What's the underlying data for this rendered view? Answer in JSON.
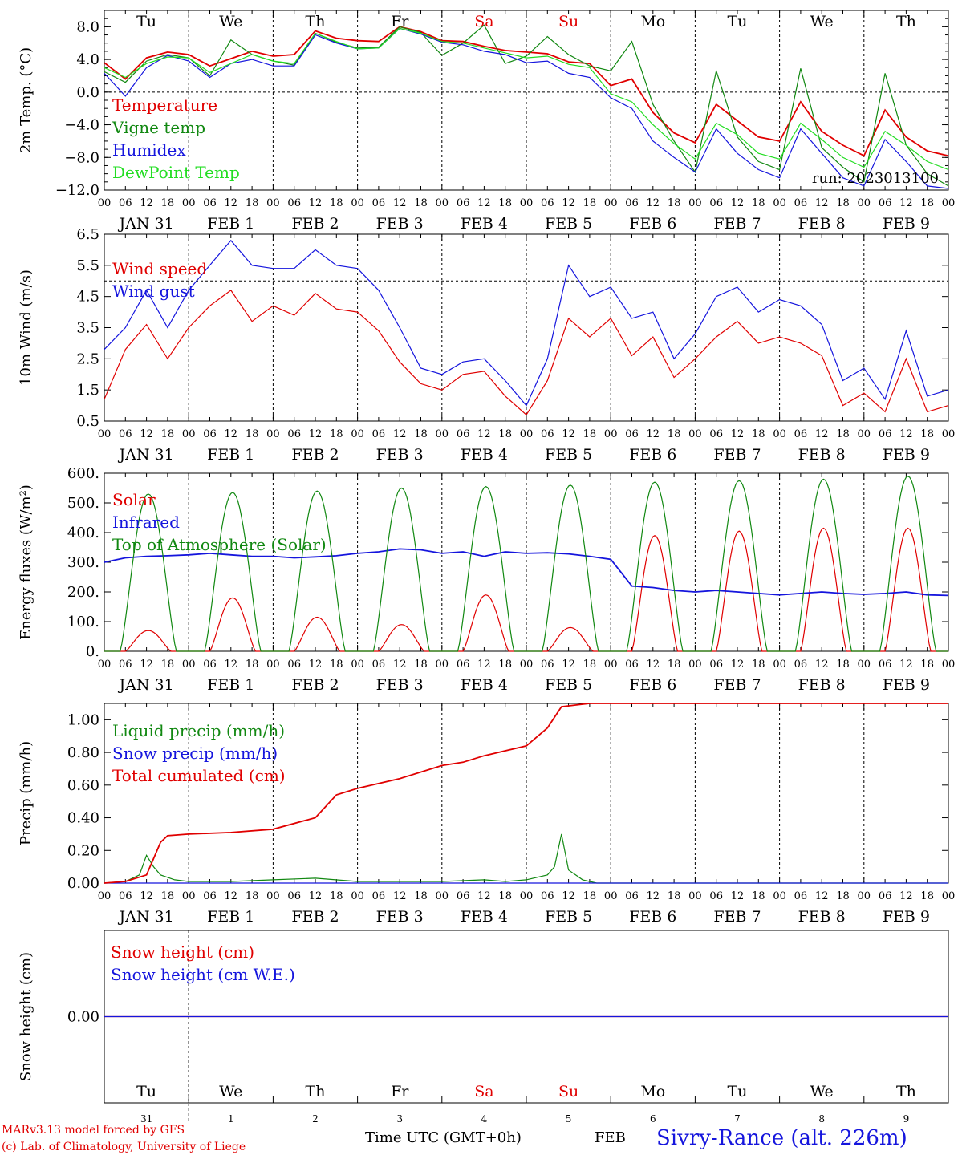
{
  "chart_data": [
    {
      "type": "line",
      "ylabel": "2m Temp. (°C)",
      "ylim": [
        -12,
        10
      ],
      "yticks": [
        "8.0",
        "4.0",
        "0.0",
        "−4.0",
        "−8.0",
        "−12.0"
      ],
      "ytick_values": [
        8,
        4,
        0,
        -4,
        -8,
        -12
      ],
      "zero_line": 0,
      "run_label": "run: 2023013100",
      "series": [
        {
          "name": "Temperature",
          "color": "#e00000",
          "x": [
            0,
            6,
            12,
            18,
            24,
            30,
            36,
            42,
            48,
            54,
            60,
            66,
            72,
            78,
            84,
            90,
            96,
            102,
            108,
            114,
            120,
            126,
            132,
            138,
            144,
            150,
            156,
            162,
            168,
            174,
            180,
            186,
            192,
            198,
            204,
            210,
            216,
            222,
            228,
            234,
            240
          ],
          "values": [
            3.6,
            1.6,
            4.2,
            4.9,
            4.6,
            3.2,
            4.1,
            5.0,
            4.4,
            4.6,
            7.5,
            6.6,
            6.3,
            6.2,
            8.0,
            7.4,
            6.3,
            6.2,
            5.6,
            5.1,
            4.9,
            4.7,
            3.7,
            3.5,
            0.8,
            1.6,
            -2.5,
            -5.0,
            -6.2,
            -1.5,
            -3.5,
            -5.5,
            -6.0,
            -1.2,
            -4.8,
            -6.5,
            -7.8,
            -2.2,
            -5.5,
            -7.2,
            -7.8
          ]
        },
        {
          "name": "Vigne temp",
          "color": "#118811",
          "x": [
            0,
            6,
            12,
            18,
            24,
            30,
            36,
            42,
            48,
            54,
            60,
            66,
            72,
            78,
            84,
            90,
            96,
            102,
            108,
            114,
            120,
            126,
            132,
            138,
            144,
            150,
            156,
            162,
            168,
            174,
            180,
            186,
            192,
            198,
            204,
            210,
            216,
            222,
            228,
            234,
            240
          ],
          "values": [
            2.5,
            1.2,
            3.8,
            4.6,
            4.2,
            2.0,
            6.4,
            4.6,
            3.8,
            3.3,
            7.2,
            6.1,
            5.4,
            5.5,
            8.0,
            7.3,
            4.5,
            6.0,
            8.2,
            3.5,
            4.4,
            6.8,
            4.6,
            3.2,
            2.6,
            6.2,
            -1.5,
            -6.0,
            -9.8,
            2.6,
            -5.5,
            -8.5,
            -9.5,
            2.9,
            -6.8,
            -9.2,
            -11.0,
            2.3,
            -6.5,
            -10.0,
            -11.5
          ]
        },
        {
          "name": "Humidex",
          "color": "#1515dd",
          "x": [
            0,
            6,
            12,
            18,
            24,
            30,
            36,
            42,
            48,
            54,
            60,
            66,
            72,
            78,
            84,
            90,
            96,
            102,
            108,
            114,
            120,
            126,
            132,
            138,
            144,
            150,
            156,
            162,
            168,
            174,
            180,
            186,
            192,
            198,
            204,
            210,
            216,
            222,
            228,
            234,
            240
          ],
          "values": [
            2.3,
            -0.5,
            3.0,
            4.5,
            3.8,
            1.8,
            3.5,
            4.0,
            3.2,
            3.2,
            7.0,
            6.0,
            5.3,
            5.4,
            7.8,
            7.1,
            6.1,
            5.8,
            5.0,
            4.6,
            3.6,
            3.8,
            2.3,
            1.8,
            -0.7,
            -2.0,
            -6.0,
            -8.0,
            -9.8,
            -4.5,
            -7.5,
            -9.5,
            -10.5,
            -4.5,
            -7.5,
            -10.5,
            -11.5,
            -5.8,
            -8.5,
            -11.5,
            -11.8
          ]
        },
        {
          "name": "DewPoint Temp",
          "color": "#22dd22",
          "x": [
            0,
            6,
            12,
            18,
            24,
            30,
            36,
            42,
            48,
            54,
            60,
            66,
            72,
            78,
            84,
            90,
            96,
            102,
            108,
            114,
            120,
            126,
            132,
            138,
            144,
            150,
            156,
            162,
            168,
            174,
            180,
            186,
            192,
            198,
            204,
            210,
            216,
            222,
            228,
            234,
            240
          ],
          "values": [
            3.0,
            1.8,
            3.5,
            4.3,
            4.2,
            2.4,
            3.5,
            4.6,
            3.8,
            3.5,
            7.2,
            6.2,
            5.3,
            5.4,
            7.8,
            7.2,
            6.2,
            6.0,
            5.4,
            4.8,
            4.2,
            4.4,
            3.4,
            3.0,
            -0.2,
            -1.2,
            -4.0,
            -6.3,
            -8.2,
            -3.8,
            -5.2,
            -7.5,
            -8.2,
            -3.8,
            -5.8,
            -8.0,
            -9.2,
            -4.8,
            -6.5,
            -8.5,
            -9.5
          ]
        }
      ]
    },
    {
      "type": "line",
      "ylabel": "10m Wind (m/s)",
      "ylim": [
        0.5,
        6.5
      ],
      "yticks": [
        "6.5",
        "5.5",
        "4.5",
        "3.5",
        "2.5",
        "1.5",
        "0.5"
      ],
      "ytick_values": [
        6.5,
        5.5,
        4.5,
        3.5,
        2.5,
        1.5,
        0.5
      ],
      "dashed_line": 5.0,
      "series": [
        {
          "name": "Wind speed",
          "color": "#e00000",
          "x": [
            0,
            6,
            12,
            18,
            24,
            30,
            36,
            42,
            48,
            54,
            60,
            66,
            72,
            78,
            84,
            90,
            96,
            102,
            108,
            114,
            120,
            126,
            132,
            138,
            144,
            150,
            156,
            162,
            168,
            174,
            180,
            186,
            192,
            198,
            204,
            210,
            216,
            222,
            228,
            234,
            240
          ],
          "values": [
            1.2,
            2.8,
            3.6,
            2.5,
            3.5,
            4.2,
            4.7,
            3.7,
            4.2,
            3.9,
            4.6,
            4.1,
            4.0,
            3.4,
            2.4,
            1.7,
            1.5,
            2.0,
            2.1,
            1.3,
            0.7,
            1.8,
            3.8,
            3.2,
            3.8,
            2.6,
            3.2,
            1.9,
            2.5,
            3.2,
            3.7,
            3.0,
            3.2,
            3.0,
            2.6,
            1.0,
            1.4,
            0.8,
            2.5,
            0.8,
            1.0
          ]
        },
        {
          "name": "Wind gust",
          "color": "#1515dd",
          "x": [
            0,
            6,
            12,
            18,
            24,
            30,
            36,
            42,
            48,
            54,
            60,
            66,
            72,
            78,
            84,
            90,
            96,
            102,
            108,
            114,
            120,
            126,
            132,
            138,
            144,
            150,
            156,
            162,
            168,
            174,
            180,
            186,
            192,
            198,
            204,
            210,
            216,
            222,
            228,
            234,
            240
          ],
          "values": [
            2.8,
            3.5,
            4.7,
            3.5,
            4.7,
            5.5,
            6.3,
            5.5,
            5.4,
            5.4,
            6.0,
            5.5,
            5.4,
            4.7,
            3.5,
            2.2,
            2.0,
            2.4,
            2.5,
            1.8,
            1.0,
            2.5,
            5.5,
            4.5,
            4.8,
            3.8,
            4.0,
            2.5,
            3.3,
            4.5,
            4.8,
            4.0,
            4.4,
            4.2,
            3.6,
            1.8,
            2.2,
            1.2,
            3.4,
            1.3,
            1.5
          ]
        }
      ]
    },
    {
      "type": "line",
      "ylabel": "Energy fluxes (W/m²)",
      "ylim": [
        0,
        600
      ],
      "yticks": [
        "600.",
        "500.",
        "400.",
        "300.",
        "200.",
        "100.",
        "0."
      ],
      "ytick_values": [
        600,
        500,
        400,
        300,
        200,
        100,
        0
      ],
      "series": [
        {
          "name": "Solar",
          "color": "#e00000",
          "peaks": [
            70,
            180,
            115,
            90,
            190,
            80,
            390,
            405,
            415,
            415
          ]
        },
        {
          "name": "Infrared",
          "color": "#1515dd",
          "x": [
            0,
            6,
            12,
            18,
            24,
            30,
            36,
            42,
            48,
            54,
            60,
            66,
            72,
            78,
            84,
            90,
            96,
            102,
            108,
            114,
            120,
            126,
            132,
            138,
            144,
            150,
            156,
            162,
            168,
            174,
            180,
            186,
            192,
            198,
            204,
            210,
            216,
            222,
            228,
            234,
            240
          ],
          "values": [
            300,
            315,
            320,
            322,
            325,
            330,
            325,
            320,
            320,
            315,
            318,
            322,
            330,
            335,
            345,
            342,
            330,
            335,
            320,
            335,
            330,
            332,
            328,
            320,
            310,
            220,
            215,
            205,
            200,
            205,
            200,
            195,
            190,
            195,
            200,
            195,
            192,
            195,
            200,
            190,
            188
          ]
        },
        {
          "name": "Top of Atmosphere (Solar)",
          "color": "#118811",
          "peaks": [
            530,
            535,
            540,
            550,
            555,
            560,
            570,
            575,
            580,
            590
          ]
        }
      ]
    },
    {
      "type": "line",
      "ylabel": "Precip (mm/h)",
      "ylim": [
        0,
        1.1
      ],
      "yticks": [
        "1.00",
        "0.80",
        "0.60",
        "0.40",
        "0.20",
        "0.00"
      ],
      "ytick_values": [
        1.0,
        0.8,
        0.6,
        0.4,
        0.2,
        0.0
      ],
      "series": [
        {
          "name": "Liquid precip (mm/h)",
          "color": "#118811",
          "x": [
            0,
            6,
            10,
            12,
            14,
            16,
            20,
            24,
            36,
            48,
            60,
            72,
            84,
            96,
            108,
            114,
            120,
            126,
            128,
            130,
            132,
            134,
            136,
            138,
            140,
            144,
            240
          ],
          "values": [
            0,
            0.01,
            0.05,
            0.17,
            0.1,
            0.05,
            0.02,
            0.01,
            0.01,
            0.02,
            0.03,
            0.01,
            0.01,
            0.01,
            0.02,
            0.01,
            0.02,
            0.05,
            0.1,
            0.3,
            0.08,
            0.05,
            0.02,
            0.01,
            0.0,
            0.0,
            0.0
          ]
        },
        {
          "name": "Snow precip (mm/h)",
          "color": "#1515dd",
          "x": [
            0,
            240
          ],
          "values": [
            0,
            0
          ]
        },
        {
          "name": "Total cumulated (cm)",
          "color": "#e00000",
          "x": [
            0,
            6,
            12,
            14,
            16,
            18,
            24,
            36,
            48,
            60,
            66,
            72,
            84,
            96,
            102,
            108,
            120,
            126,
            130,
            134,
            138,
            144,
            180,
            240
          ],
          "values": [
            0,
            0.01,
            0.05,
            0.15,
            0.25,
            0.29,
            0.3,
            0.31,
            0.33,
            0.4,
            0.54,
            0.58,
            0.64,
            0.72,
            0.74,
            0.78,
            0.84,
            0.95,
            1.08,
            1.09,
            1.1,
            1.1,
            1.1,
            1.1
          ]
        }
      ]
    },
    {
      "type": "line",
      "ylabel": "Snow height (cm)",
      "ylim": [
        -1,
        1
      ],
      "yticks": [
        "0.00"
      ],
      "ytick_values": [
        0
      ],
      "series": [
        {
          "name": "Snow height (cm)",
          "color": "#e00000",
          "x": [
            0,
            240
          ],
          "values": [
            0,
            0
          ]
        },
        {
          "name": "Snow height (cm W.E.)",
          "color": "#1515dd",
          "x": [
            0,
            240
          ],
          "values": [
            0,
            0
          ]
        }
      ]
    }
  ],
  "days": [
    {
      "name": "Tu",
      "color": "#000000",
      "num": "31",
      "label": "JAN 31"
    },
    {
      "name": "We",
      "color": "#000000",
      "num": "1",
      "label": "FEB  1"
    },
    {
      "name": "Th",
      "color": "#000000",
      "num": "2",
      "label": "FEB  2"
    },
    {
      "name": "Fr",
      "color": "#000000",
      "num": "3",
      "label": "FEB  3"
    },
    {
      "name": "Sa",
      "color": "#e00000",
      "num": "4",
      "label": "FEB  4"
    },
    {
      "name": "Su",
      "color": "#e00000",
      "num": "5",
      "label": "FEB  5"
    },
    {
      "name": "Mo",
      "color": "#000000",
      "num": "6",
      "label": "FEB  6"
    },
    {
      "name": "Tu",
      "color": "#000000",
      "num": "7",
      "label": "FEB  7"
    },
    {
      "name": "We",
      "color": "#000000",
      "num": "8",
      "label": "FEB  8"
    },
    {
      "name": "Th",
      "color": "#000000",
      "num": "9",
      "label": "FEB  9"
    }
  ],
  "hour_ticks": [
    "00",
    "06",
    "12",
    "18"
  ],
  "final_hour_tick": "00",
  "footer": {
    "credit_line1": "MARv3.13 model forced by GFS",
    "credit_line2": "(c) Lab. of Climatology, University of Liege",
    "xlabel": "Time UTC (GMT+0h)",
    "month": "FEB",
    "station": "Sivry-Rance (alt. 226m)"
  }
}
